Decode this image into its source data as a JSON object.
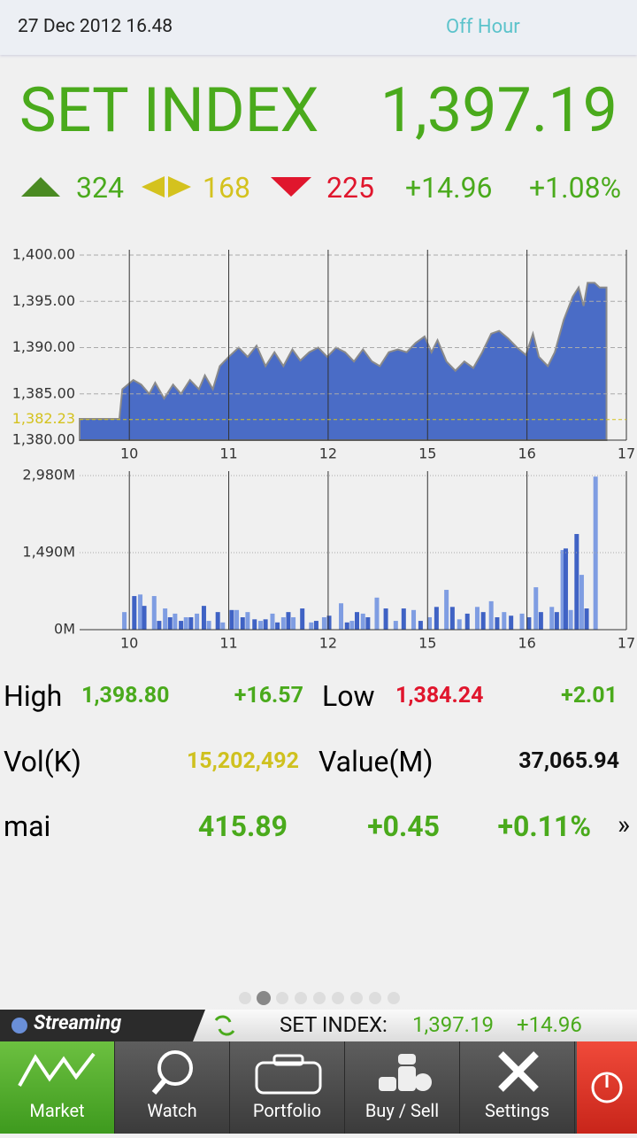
{
  "status": {
    "datetime": "27 Dec 2012 16.48",
    "state": "Off Hour"
  },
  "index": {
    "name": "SET INDEX",
    "value": "1,397.19"
  },
  "breadth": {
    "up": "324",
    "unchanged": "168",
    "down": "225",
    "change": "+14.96",
    "percent": "+1.08%"
  },
  "chart_data": [
    {
      "type": "area",
      "color": "#4a6cc6",
      "line_color": "#8a8a8a",
      "grid": true,
      "x": [
        9.5,
        9.9,
        9.93,
        10.04,
        10.12,
        10.2,
        10.26,
        10.35,
        10.44,
        10.52,
        10.61,
        10.7,
        10.76,
        10.84,
        10.91,
        11.0,
        11.1,
        11.19,
        11.28,
        11.37,
        11.46,
        11.55,
        11.64,
        11.72,
        11.81,
        11.9,
        11.99,
        12.08,
        12.17,
        12.26,
        12.35,
        12.44,
        12.52,
        12.61,
        12.7,
        12.79,
        12.88,
        12.97,
        13.04,
        13.1,
        13.19,
        13.28,
        13.37,
        13.46,
        13.55,
        13.64,
        13.72,
        13.81,
        13.9,
        13.99,
        14.06,
        14.12,
        14.21,
        14.28,
        14.37,
        14.46,
        14.52,
        14.57,
        14.61,
        14.68,
        14.73,
        14.8
      ],
      "values": [
        1382.3,
        1382.3,
        1385.5,
        1386.5,
        1386,
        1385,
        1386.2,
        1384.5,
        1386,
        1385,
        1386.5,
        1385.5,
        1387,
        1385.5,
        1388,
        1389,
        1390,
        1389,
        1390.2,
        1388,
        1389.5,
        1388,
        1389.8,
        1388.6,
        1389.5,
        1390,
        1389,
        1390,
        1389.5,
        1388.5,
        1389.8,
        1388.5,
        1388,
        1389.5,
        1389.8,
        1389.5,
        1390.5,
        1391.2,
        1389.5,
        1390.8,
        1388.5,
        1387.5,
        1388.5,
        1387.8,
        1389.5,
        1391.5,
        1391.8,
        1391,
        1390,
        1389.2,
        1391.5,
        1389,
        1388,
        1389.5,
        1393,
        1395.5,
        1396.5,
        1394.5,
        1397,
        1397,
        1396.5,
        1396.5
      ],
      "xlim": [
        9.5,
        15
      ],
      "xticks": [
        10,
        11,
        12,
        {
          "value": 13,
          "label": "15"
        },
        {
          "value": 14,
          "label": "16"
        },
        {
          "value": 15,
          "label": "17"
        }
      ],
      "ylim": [
        1380,
        1400
      ],
      "yticks": [
        {
          "value": 1380,
          "label": "1,380.00"
        },
        {
          "value": 1385,
          "label": "1,385.00"
        },
        {
          "value": 1390,
          "label": "1,390.00"
        },
        {
          "value": 1395,
          "label": "1,395.00"
        },
        {
          "value": 1400,
          "label": "1,400.00"
        }
      ],
      "reference": {
        "value": 1382.23,
        "label": "1,382.23",
        "color": "#d4c21e"
      }
    },
    {
      "type": "bar",
      "colors": [
        "#7f9de2",
        "#3f62c4"
      ],
      "grid": true,
      "x": [
        9.95,
        10.05,
        10.11,
        10.15,
        10.25,
        10.3,
        10.36,
        10.41,
        10.46,
        10.52,
        10.57,
        10.62,
        10.68,
        10.75,
        10.8,
        10.89,
        10.94,
        11.03,
        11.08,
        11.14,
        11.19,
        11.26,
        11.32,
        11.37,
        11.44,
        11.49,
        11.55,
        11.6,
        11.65,
        11.74,
        11.83,
        11.88,
        11.96,
        12.01,
        12.13,
        12.19,
        12.24,
        12.29,
        12.35,
        12.4,
        12.49,
        12.58,
        12.68,
        12.76,
        12.86,
        12.93,
        13.02,
        13.09,
        13.19,
        13.25,
        13.32,
        13.4,
        13.5,
        13.56,
        13.64,
        13.7,
        13.77,
        13.84,
        13.95,
        14.02,
        14.09,
        14.14,
        14.25,
        14.3,
        14.36,
        14.39,
        14.44,
        14.5,
        14.55,
        14.6,
        14.69
      ],
      "values": [
        340,
        650,
        680,
        460,
        650,
        170,
        410,
        240,
        310,
        170,
        240,
        240,
        310,
        460,
        170,
        340,
        140,
        380,
        380,
        240,
        340,
        200,
        170,
        200,
        310,
        140,
        240,
        340,
        240,
        410,
        140,
        170,
        240,
        270,
        510,
        140,
        170,
        340,
        310,
        240,
        620,
        410,
        170,
        410,
        380,
        170,
        240,
        440,
        770,
        440,
        200,
        310,
        440,
        340,
        550,
        240,
        340,
        270,
        310,
        240,
        820,
        340,
        440,
        340,
        1540,
        1570,
        380,
        1850,
        1060,
        410,
        2960
      ],
      "xlim": [
        9.5,
        15
      ],
      "xticks": [
        10,
        11,
        12,
        {
          "value": 13,
          "label": "15"
        },
        {
          "value": 14,
          "label": "16"
        },
        {
          "value": 15,
          "label": "17"
        }
      ],
      "ylim": [
        0,
        2980
      ],
      "yticks": [
        {
          "value": 0,
          "label": "0M"
        },
        {
          "value": 1490,
          "label": "1,490M"
        },
        {
          "value": 2980,
          "label": "2,980M"
        }
      ]
    }
  ],
  "stats": {
    "high": {
      "label": "High",
      "value": "1,398.80",
      "change": "+16.57"
    },
    "low": {
      "label": "Low",
      "value": "1,384.24",
      "change": "+2.01"
    },
    "volume": {
      "label": "Vol(K)",
      "value": "15,202,492"
    },
    "turnover": {
      "label": "Value(M)",
      "value": "37,065.94"
    },
    "mai": {
      "label": "mai",
      "value": "415.89",
      "change": "+0.45",
      "percent": "+0.11%",
      "more": "»"
    }
  },
  "ticker": {
    "brand": "Streaming",
    "name": "SET INDEX:",
    "value": "1,397.19",
    "change": "+14.96"
  },
  "tabs": [
    "Market",
    "Watch",
    "Portfolio",
    "Buy / Sell",
    "Settings"
  ]
}
